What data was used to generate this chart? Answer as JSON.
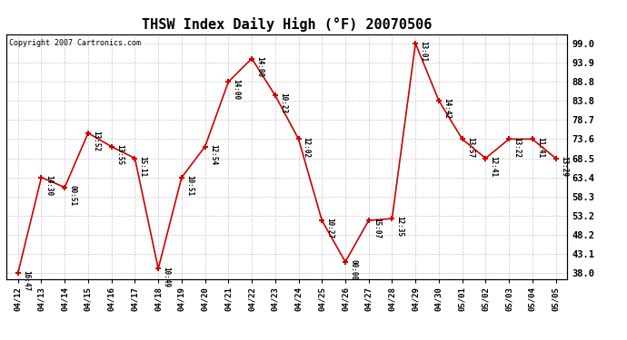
{
  "title": "THSW Index Daily High (°F) 20070506",
  "copyright": "Copyright 2007 Cartronics.com",
  "x_labels": [
    "04/12",
    "04/13",
    "04/14",
    "04/15",
    "04/16",
    "04/17",
    "04/18",
    "04/19",
    "04/20",
    "04/21",
    "04/22",
    "04/23",
    "04/24",
    "04/25",
    "04/26",
    "04/27",
    "04/28",
    "04/29",
    "04/30",
    "05/01",
    "05/02",
    "05/03",
    "05/04",
    "05/05"
  ],
  "y_values": [
    38.0,
    63.4,
    60.8,
    75.2,
    71.6,
    68.5,
    39.2,
    63.4,
    71.6,
    88.8,
    95.0,
    85.2,
    73.6,
    52.0,
    41.0,
    52.0,
    52.5,
    99.0,
    83.8,
    73.6,
    68.5,
    73.6,
    73.6,
    68.5
  ],
  "point_labels": [
    "16:47",
    "14:30",
    "00:51",
    "13:52",
    "13:55",
    "15:11",
    "10:49",
    "10:51",
    "12:54",
    "14:00",
    "14:00",
    "10:23",
    "12:02",
    "10:27",
    "00:00",
    "15:07",
    "12:35",
    "13:01",
    "14:42",
    "13:57",
    "12:41",
    "13:22",
    "11:41",
    "13:29"
  ],
  "line_color": "#cc0000",
  "marker_color": "#cc0000",
  "background_color": "#ffffff",
  "plot_bg_color": "#ffffff",
  "grid_color": "#bbbbbb",
  "title_fontsize": 11,
  "y_ticks": [
    38.0,
    43.1,
    48.2,
    53.2,
    58.3,
    63.4,
    68.5,
    73.6,
    78.7,
    83.8,
    88.8,
    93.9,
    99.0
  ],
  "ylim": [
    36.5,
    101.5
  ]
}
